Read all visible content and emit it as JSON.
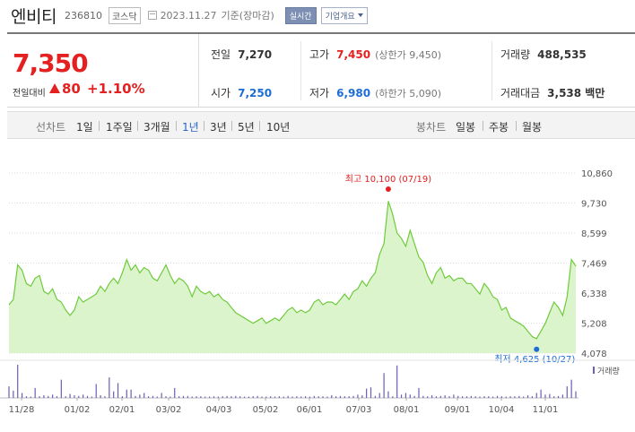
{
  "header": {
    "name": "엔비티",
    "code": "236810",
    "market": "코스닥",
    "date": "2023.11.27",
    "basis": "기준(장마감)",
    "realtime_label": "실시간",
    "company_label": "기업개요"
  },
  "price": {
    "current": "7,350",
    "change_label": "전일대비",
    "change": "80",
    "change_pct": "+1.10%",
    "prev_close_label": "전일",
    "prev_close": "7,270",
    "open_label": "시가",
    "open": "7,250",
    "high_label": "고가",
    "high": "7,450",
    "upper_limit": "(상한가 9,450)",
    "low_label": "저가",
    "low": "6,980",
    "lower_limit": "(하한가 5,090)",
    "volume_label": "거래량",
    "volume": "488,535",
    "amount_label": "거래대금",
    "amount": "3,538 백만"
  },
  "tabs": {
    "line_label": "선차트",
    "line_periods": [
      "1일",
      "1주일",
      "3개월",
      "1년",
      "3년",
      "5년",
      "10년"
    ],
    "active_period": "1년",
    "candle_label": "봉차트",
    "candle_periods": [
      "일봉",
      "주봉",
      "월봉"
    ]
  },
  "colors": {
    "up": "#e52020",
    "down": "#1d6dd6",
    "line": "#6ecb3c",
    "fill": "#d8f3c6",
    "volume": "#6b5fb5"
  },
  "chart_data": {
    "type": "area",
    "y_ticks": [
      "10,860",
      "9,730",
      "8,599",
      "7,469",
      "6,338",
      "5,208",
      "4,078"
    ],
    "ylim": [
      4078,
      10860
    ],
    "x_ticks": [
      "11/28",
      "01/02",
      "02/01",
      "03/02",
      "04/03",
      "05/02",
      "06/01",
      "07/03",
      "08/01",
      "09/01",
      "10/04",
      "11/01"
    ],
    "high_annotation": "최고 10,100 (07/19)",
    "low_annotation": "최저 4,625 (10/27)",
    "volume_label": "거래량",
    "series": [
      {
        "values": [
          5900,
          6100,
          7400,
          7200,
          6700,
          6600,
          6900,
          7000,
          6400,
          6300,
          6500,
          6100,
          6000,
          5700,
          5500,
          5700,
          6200,
          6000,
          6100,
          6200,
          6300,
          6600,
          6400,
          6700,
          6900,
          6700,
          7100,
          7600,
          7200,
          7400,
          7100,
          7300,
          7200,
          6900,
          6800,
          7100,
          7400,
          7000,
          6700,
          6900,
          6800,
          6600,
          6200,
          6600,
          6400,
          6300,
          6400,
          6200,
          6300,
          6100,
          6000,
          5800,
          5600,
          5500,
          5400,
          5300,
          5200,
          5300,
          5400,
          5200,
          5300,
          5400,
          5300,
          5500,
          5700,
          5800,
          5600,
          5700,
          5600,
          5700,
          6000,
          6100,
          5900,
          6000,
          6000,
          5900,
          6100,
          6300,
          6100,
          6400,
          6500,
          6800,
          6600,
          6900,
          7100,
          7800,
          8200,
          9800,
          9300,
          8600,
          8400,
          8100,
          8700,
          8200,
          7700,
          7500,
          7000,
          6700,
          7100,
          7300,
          6900,
          7000,
          6800,
          6900,
          6900,
          6700,
          6700,
          6500,
          6300,
          6700,
          6500,
          6200,
          6100,
          5700,
          5800,
          5400,
          5300,
          5200,
          5100,
          4900,
          4700,
          4625,
          4900,
          5200,
          5600,
          6000,
          5800,
          5500,
          6200,
          7600,
          7350
        ]
      }
    ],
    "volume": [
      0.35,
      0.22,
      1.0,
      0.15,
      0.05,
      0.04,
      0.3,
      0.05,
      0.08,
      0.06,
      0.1,
      0.05,
      0.55,
      0.05,
      0.12,
      0.08,
      0.06,
      0.1,
      0.06,
      0.04,
      0.42,
      0.08,
      0.05,
      0.62,
      0.2,
      0.45,
      0.05,
      0.25,
      0.25,
      0.06,
      0.1,
      0.15,
      0.05,
      0.06,
      0.04,
      0.15,
      0.05,
      0.04,
      0.3,
      0.05,
      0.06,
      0.06,
      0.04,
      0.05,
      0.05,
      0.04,
      0.04,
      0.05,
      0.04,
      0.05,
      0.06,
      0.05,
      0.06,
      0.05,
      0.04,
      0.04,
      0.05,
      0.06,
      0.04,
      0.04,
      0.05,
      0.04,
      0.05,
      0.04,
      0.06,
      0.04,
      0.05,
      0.04,
      0.05,
      0.04,
      0.06,
      0.05,
      0.05,
      0.04,
      0.08,
      0.05,
      0.06,
      0.05,
      0.05,
      0.06,
      0.1,
      0.08,
      0.28,
      0.32,
      0.06,
      0.15,
      0.75,
      0.2,
      0.05,
      0.98,
      0.1,
      0.15,
      0.1,
      0.06,
      0.3,
      0.06,
      0.05,
      0.08,
      0.05,
      0.06,
      0.08,
      0.05,
      0.1,
      0.06,
      0.05,
      0.05,
      0.06,
      0.05,
      0.04,
      0.05,
      0.05,
      0.04,
      0.06,
      0.05,
      0.04,
      0.05,
      0.05,
      0.06,
      0.04,
      0.08,
      0.05,
      0.15,
      0.25,
      0.1,
      0.12,
      0.05,
      0.06,
      0.1,
      0.35,
      0.55,
      0.2
    ]
  }
}
